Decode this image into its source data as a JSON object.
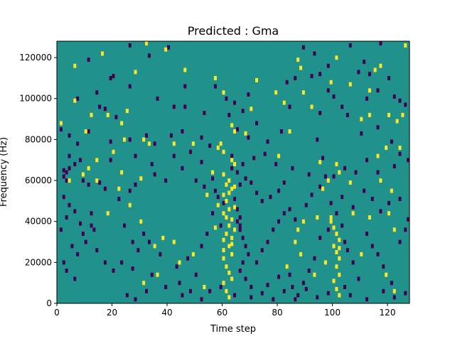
{
  "chart_data": {
    "type": "heatmap",
    "title": "Predicted : Gma",
    "xlabel": "Time step",
    "ylabel": "Frequency (Hz)",
    "xlim": [
      0,
      128
    ],
    "ylim": [
      0,
      128000
    ],
    "x_ticks": [
      0,
      20,
      40,
      60,
      80,
      100,
      120
    ],
    "y_ticks": [
      0,
      20000,
      40000,
      60000,
      80000,
      100000,
      120000
    ],
    "x_tick_labels": [
      "0",
      "20",
      "40",
      "60",
      "80",
      "100",
      "120"
    ],
    "y_tick_labels": [
      "0",
      "20000",
      "40000",
      "60000",
      "80000",
      "100000",
      "120000"
    ],
    "n_time_bins": 128,
    "n_freq_bins": 128,
    "background_value": 0,
    "colors": {
      "low": "#440154",
      "mid": "#21918c",
      "high": "#fde725"
    },
    "high_cells": [
      [
        32,
        127
      ],
      [
        126,
        126
      ],
      [
        39,
        124
      ],
      [
        6,
        116
      ],
      [
        16,
        122
      ],
      [
        28,
        113
      ],
      [
        46,
        114
      ],
      [
        87,
        119
      ],
      [
        101,
        120
      ],
      [
        115,
        114
      ],
      [
        117,
        116
      ],
      [
        88,
        115
      ],
      [
        57,
        110
      ],
      [
        60,
        103
      ],
      [
        72,
        109
      ],
      [
        79,
        103
      ],
      [
        99,
        108
      ],
      [
        106,
        107
      ],
      [
        113,
        104
      ],
      [
        92,
        96
      ],
      [
        70,
        95
      ],
      [
        82,
        98
      ],
      [
        89,
        103
      ],
      [
        113,
        92
      ],
      [
        120,
        92
      ],
      [
        125,
        92
      ],
      [
        1,
        88
      ],
      [
        12,
        92
      ],
      [
        18,
        92
      ],
      [
        23,
        88
      ],
      [
        63,
        87
      ],
      [
        64,
        84
      ],
      [
        68,
        83
      ],
      [
        84,
        84
      ],
      [
        110,
        90
      ],
      [
        123,
        89
      ],
      [
        31,
        80
      ],
      [
        33,
        78
      ],
      [
        42,
        78
      ],
      [
        24,
        80
      ],
      [
        49,
        78
      ],
      [
        59,
        78
      ],
      [
        58,
        76
      ],
      [
        60,
        74
      ],
      [
        63,
        70
      ],
      [
        64,
        68
      ],
      [
        80,
        72
      ],
      [
        95,
        69
      ],
      [
        101,
        68
      ],
      [
        116,
        72
      ],
      [
        119,
        76
      ],
      [
        124,
        76
      ],
      [
        14,
        70
      ],
      [
        20,
        74
      ],
      [
        11,
        66
      ],
      [
        9,
        63
      ],
      [
        23,
        64
      ],
      [
        30,
        61
      ],
      [
        56,
        64
      ],
      [
        60,
        63
      ],
      [
        61,
        58
      ],
      [
        62,
        60
      ],
      [
        63,
        56
      ],
      [
        60,
        53
      ],
      [
        61,
        50
      ],
      [
        62,
        46
      ],
      [
        60,
        44
      ],
      [
        63,
        41
      ],
      [
        62,
        38
      ],
      [
        61,
        34
      ],
      [
        60,
        31
      ],
      [
        62,
        28
      ],
      [
        63,
        24
      ],
      [
        60,
        22
      ],
      [
        61,
        18
      ],
      [
        62,
        15
      ],
      [
        63,
        12
      ],
      [
        60,
        10
      ],
      [
        61,
        6
      ],
      [
        62,
        3
      ],
      [
        60,
        26
      ],
      [
        63,
        32
      ],
      [
        64,
        36
      ],
      [
        63,
        29
      ],
      [
        61,
        42
      ],
      [
        62,
        54
      ],
      [
        64,
        47
      ],
      [
        64,
        57
      ],
      [
        54,
        53
      ],
      [
        58,
        48
      ],
      [
        57,
        37
      ],
      [
        42,
        30
      ],
      [
        38,
        32
      ],
      [
        35,
        28
      ],
      [
        30,
        40
      ],
      [
        26,
        48
      ],
      [
        18,
        44
      ],
      [
        14,
        60
      ],
      [
        22,
        56
      ],
      [
        49,
        24
      ],
      [
        44,
        20
      ],
      [
        36,
        14
      ],
      [
        31,
        10
      ],
      [
        53,
        8
      ],
      [
        99,
        40
      ],
      [
        100,
        37
      ],
      [
        101,
        34
      ],
      [
        102,
        31
      ],
      [
        100,
        28
      ],
      [
        101,
        25
      ],
      [
        102,
        22
      ],
      [
        101,
        18
      ],
      [
        102,
        14
      ],
      [
        100,
        11
      ],
      [
        101,
        7
      ],
      [
        102,
        4
      ],
      [
        99,
        42
      ],
      [
        102,
        27
      ],
      [
        89,
        40
      ],
      [
        87,
        36
      ],
      [
        94,
        42
      ],
      [
        107,
        44
      ],
      [
        113,
        42
      ],
      [
        122,
        36
      ],
      [
        110,
        24
      ],
      [
        98,
        60
      ],
      [
        96,
        56
      ],
      [
        102,
        64
      ],
      [
        106,
        59
      ],
      [
        117,
        60
      ],
      [
        121,
        55
      ],
      [
        120,
        44
      ],
      [
        86,
        30
      ],
      [
        83,
        18
      ],
      [
        88,
        24
      ],
      [
        93,
        14
      ],
      [
        97,
        20
      ],
      [
        122,
        6
      ],
      [
        119,
        14
      ],
      [
        6,
        99
      ],
      [
        10,
        84
      ],
      [
        25,
        94
      ],
      [
        4,
        60
      ]
    ],
    "low_cells": [
      [
        26,
        126
      ],
      [
        117,
        127
      ],
      [
        106,
        126
      ],
      [
        89,
        125
      ],
      [
        93,
        122
      ],
      [
        98,
        116
      ],
      [
        111,
        118
      ],
      [
        11,
        119
      ],
      [
        33,
        121
      ],
      [
        40,
        125
      ],
      [
        19,
        110
      ],
      [
        20,
        111
      ],
      [
        26,
        106
      ],
      [
        46,
        106
      ],
      [
        57,
        106
      ],
      [
        61,
        100
      ],
      [
        64,
        98
      ],
      [
        69,
        102
      ],
      [
        86,
        110
      ],
      [
        92,
        111
      ],
      [
        95,
        112
      ],
      [
        109,
        113
      ],
      [
        113,
        112
      ],
      [
        120,
        110
      ],
      [
        83,
        108
      ],
      [
        98,
        104
      ],
      [
        116,
        104
      ],
      [
        124,
        99
      ],
      [
        7,
        100
      ],
      [
        14,
        103
      ],
      [
        15,
        96
      ],
      [
        17,
        95
      ],
      [
        21,
        91
      ],
      [
        36,
        100
      ],
      [
        42,
        96
      ],
      [
        46,
        96
      ],
      [
        53,
        93
      ],
      [
        62,
        92
      ],
      [
        67,
        94
      ],
      [
        72,
        88
      ],
      [
        84,
        96
      ],
      [
        95,
        93
      ],
      [
        100,
        101
      ],
      [
        103,
        96
      ],
      [
        105,
        92
      ],
      [
        112,
        100
      ],
      [
        122,
        101
      ],
      [
        126,
        97
      ],
      [
        1,
        85
      ],
      [
        4,
        82
      ],
      [
        7,
        78
      ],
      [
        11,
        84
      ],
      [
        19,
        79
      ],
      [
        26,
        80
      ],
      [
        32,
        82
      ],
      [
        35,
        78
      ],
      [
        41,
        82
      ],
      [
        45,
        84
      ],
      [
        52,
        81
      ],
      [
        55,
        77
      ],
      [
        65,
        85
      ],
      [
        69,
        81
      ],
      [
        76,
        79
      ],
      [
        81,
        84
      ],
      [
        94,
        80
      ],
      [
        110,
        83
      ],
      [
        116,
        86
      ],
      [
        121,
        79
      ],
      [
        124,
        73
      ],
      [
        4,
        72
      ],
      [
        6,
        68
      ],
      [
        8,
        70
      ],
      [
        19,
        70
      ],
      [
        28,
        72
      ],
      [
        34,
        68
      ],
      [
        42,
        72
      ],
      [
        48,
        74
      ],
      [
        52,
        69
      ],
      [
        63,
        72
      ],
      [
        67,
        68
      ],
      [
        71,
        71
      ],
      [
        75,
        73
      ],
      [
        79,
        68
      ],
      [
        85,
        66
      ],
      [
        91,
        63
      ],
      [
        96,
        71
      ],
      [
        100,
        62
      ],
      [
        104,
        66
      ],
      [
        108,
        64
      ],
      [
        112,
        70
      ],
      [
        116,
        64
      ],
      [
        122,
        67
      ],
      [
        127,
        70
      ],
      [
        2,
        65
      ],
      [
        3,
        64
      ],
      [
        4,
        66
      ],
      [
        2,
        62
      ],
      [
        3,
        60
      ],
      [
        9,
        60
      ],
      [
        11,
        58
      ],
      [
        15,
        59
      ],
      [
        17,
        56
      ],
      [
        22,
        51
      ],
      [
        26,
        55
      ],
      [
        28,
        58
      ],
      [
        35,
        63
      ],
      [
        39,
        60
      ],
      [
        45,
        66
      ],
      [
        50,
        60
      ],
      [
        53,
        57
      ],
      [
        56,
        61
      ],
      [
        57,
        55
      ],
      [
        58,
        52
      ],
      [
        60,
        49
      ],
      [
        64,
        51
      ],
      [
        66,
        58
      ],
      [
        68,
        61
      ],
      [
        70,
        59
      ],
      [
        72,
        54
      ],
      [
        74,
        50
      ],
      [
        77,
        52
      ],
      [
        80,
        55
      ],
      [
        82,
        59
      ],
      [
        84,
        46
      ],
      [
        86,
        41
      ],
      [
        90,
        48
      ],
      [
        92,
        53
      ],
      [
        95,
        57
      ],
      [
        97,
        62
      ],
      [
        99,
        49
      ],
      [
        103,
        52
      ],
      [
        107,
        47
      ],
      [
        111,
        55
      ],
      [
        114,
        51
      ],
      [
        117,
        45
      ],
      [
        120,
        49
      ],
      [
        124,
        51
      ],
      [
        127,
        41
      ],
      [
        2,
        52
      ],
      [
        4,
        48
      ],
      [
        6,
        45
      ],
      [
        8,
        39
      ],
      [
        9,
        34
      ],
      [
        10,
        30
      ],
      [
        3,
        42
      ],
      [
        5,
        28
      ],
      [
        7,
        24
      ],
      [
        2,
        20
      ],
      [
        3,
        16
      ],
      [
        6,
        12
      ],
      [
        1,
        36
      ],
      [
        12,
        44
      ],
      [
        12,
        38
      ],
      [
        13,
        36
      ],
      [
        14,
        26
      ],
      [
        17,
        20
      ],
      [
        20,
        16
      ],
      [
        24,
        38
      ],
      [
        27,
        30
      ],
      [
        29,
        26
      ],
      [
        31,
        34
      ],
      [
        33,
        30
      ],
      [
        37,
        24
      ],
      [
        43,
        18
      ],
      [
        47,
        22
      ],
      [
        50,
        14
      ],
      [
        52,
        28
      ],
      [
        54,
        34
      ],
      [
        56,
        44
      ],
      [
        59,
        38
      ],
      [
        65,
        40
      ],
      [
        66,
        36
      ],
      [
        67,
        32
      ],
      [
        68,
        28
      ],
      [
        69,
        24
      ],
      [
        67,
        20
      ],
      [
        66,
        16
      ],
      [
        68,
        12
      ],
      [
        70,
        8
      ],
      [
        72,
        20
      ],
      [
        74,
        26
      ],
      [
        76,
        30
      ],
      [
        78,
        36
      ],
      [
        80,
        40
      ],
      [
        82,
        44
      ],
      [
        84,
        14
      ],
      [
        85,
        8
      ],
      [
        87,
        4
      ],
      [
        89,
        10
      ],
      [
        91,
        16
      ],
      [
        93,
        22
      ],
      [
        95,
        32
      ],
      [
        98,
        36
      ],
      [
        101,
        44
      ],
      [
        103,
        38
      ],
      [
        104,
        30
      ],
      [
        105,
        26
      ],
      [
        107,
        20
      ],
      [
        109,
        12
      ],
      [
        112,
        34
      ],
      [
        114,
        28
      ],
      [
        116,
        24
      ],
      [
        118,
        18
      ],
      [
        121,
        10
      ],
      [
        124,
        30
      ],
      [
        126,
        36
      ],
      [
        65,
        64
      ],
      [
        65,
        46
      ],
      [
        66,
        42
      ],
      [
        66,
        38
      ],
      [
        63,
        66
      ],
      [
        28,
        2
      ],
      [
        25,
        4
      ],
      [
        32,
        6
      ],
      [
        39,
        8
      ],
      [
        45,
        4
      ],
      [
        52,
        2
      ],
      [
        55,
        6
      ],
      [
        59,
        8
      ],
      [
        64,
        4
      ],
      [
        70,
        3
      ],
      [
        74,
        5
      ],
      [
        78,
        2
      ],
      [
        82,
        6
      ],
      [
        86,
        2
      ],
      [
        90,
        7
      ],
      [
        94,
        3
      ],
      [
        98,
        5
      ],
      [
        104,
        8
      ],
      [
        106,
        4
      ],
      [
        112,
        2
      ],
      [
        118,
        6
      ],
      [
        122,
        3
      ],
      [
        126,
        5
      ],
      [
        23,
        20
      ],
      [
        27,
        17
      ],
      [
        34,
        14
      ],
      [
        44,
        10
      ],
      [
        48,
        6
      ],
      [
        76,
        9
      ],
      [
        80,
        13
      ]
    ]
  }
}
